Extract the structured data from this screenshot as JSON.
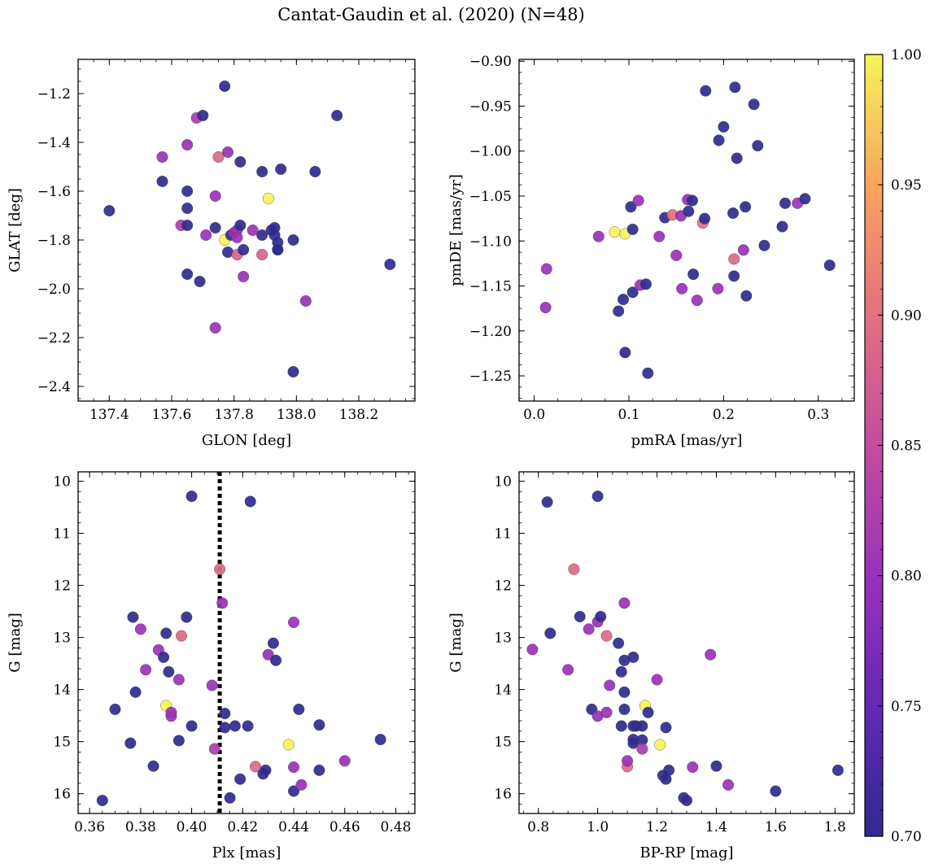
{
  "title": "Cantat-Gaudin et al. (2020) (N=48)",
  "colorbar": {
    "min": 0.7,
    "max": 1.0,
    "ticks": [
      "0.70",
      "0.75",
      "0.80",
      "0.85",
      "0.90",
      "0.95",
      "1.00"
    ],
    "colormap": "plasma",
    "colors": [
      "#3b2d93",
      "#7b2fbf",
      "#b03fb0",
      "#d0609a",
      "#ec8a72",
      "#f9c058",
      "#f7f559"
    ]
  },
  "chart_data": [
    {
      "type": "scatter",
      "name": "glon-glat",
      "xlabel": "GLON [deg]",
      "ylabel": "GLAT [deg]",
      "xlim": [
        137.3,
        138.38
      ],
      "ylim": [
        -2.46,
        -1.06
      ],
      "xticks": [
        "137.4",
        "137.6",
        "137.8",
        "138.0",
        "138.2"
      ],
      "xtick_values": [
        137.4,
        137.6,
        137.8,
        138.0,
        138.2
      ],
      "yticks": [
        "-1.2",
        "-1.4",
        "-1.6",
        "-1.8",
        "-2.0",
        "-2.2",
        "-2.4"
      ],
      "ytick_values": [
        -1.2,
        -1.4,
        -1.6,
        -1.8,
        -2.0,
        -2.2,
        -2.4
      ],
      "invert_y": false,
      "points": [
        [
          137.4,
          -1.68,
          0.7
        ],
        [
          137.57,
          -1.56,
          0.7
        ],
        [
          137.57,
          -1.46,
          0.8
        ],
        [
          137.63,
          -1.74,
          0.82
        ],
        [
          137.65,
          -1.6,
          0.7
        ],
        [
          137.65,
          -1.67,
          0.7
        ],
        [
          137.65,
          -1.74,
          0.7
        ],
        [
          137.65,
          -1.41,
          0.8
        ],
        [
          137.65,
          -1.94,
          0.7
        ],
        [
          137.68,
          -1.3,
          0.82
        ],
        [
          137.69,
          -1.97,
          0.7
        ],
        [
          137.7,
          -1.29,
          0.7
        ],
        [
          137.71,
          -1.78,
          0.8
        ],
        [
          137.74,
          -1.75,
          0.7
        ],
        [
          137.74,
          -1.62,
          0.8
        ],
        [
          137.74,
          -2.16,
          0.8
        ],
        [
          137.75,
          -1.46,
          0.89
        ],
        [
          137.77,
          -1.8,
          1.0
        ],
        [
          137.77,
          -1.17,
          0.7
        ],
        [
          137.78,
          -1.44,
          0.8
        ],
        [
          137.78,
          -1.85,
          0.7
        ],
        [
          137.79,
          -1.78,
          0.7
        ],
        [
          137.8,
          -1.77,
          0.8
        ],
        [
          137.81,
          -1.76,
          0.8
        ],
        [
          137.81,
          -1.79,
          0.8
        ],
        [
          137.81,
          -1.86,
          0.88
        ],
        [
          137.82,
          -1.48,
          0.7
        ],
        [
          137.82,
          -1.74,
          0.7
        ],
        [
          137.83,
          -1.84,
          0.7
        ],
        [
          137.83,
          -1.95,
          0.8
        ],
        [
          137.86,
          -1.76,
          0.8
        ],
        [
          137.89,
          -1.78,
          0.7
        ],
        [
          137.89,
          -1.52,
          0.7
        ],
        [
          137.89,
          -1.86,
          0.88
        ],
        [
          137.91,
          -1.63,
          1.0
        ],
        [
          137.93,
          -1.75,
          0.7
        ],
        [
          137.93,
          -1.78,
          0.7
        ],
        [
          137.94,
          -1.81,
          0.7
        ],
        [
          137.94,
          -1.84,
          0.7
        ],
        [
          137.94,
          -1.84,
          0.7
        ],
        [
          137.95,
          -1.51,
          0.7
        ],
        [
          137.99,
          -2.34,
          0.7
        ],
        [
          137.99,
          -1.8,
          0.7
        ],
        [
          138.03,
          -2.05,
          0.8
        ],
        [
          138.06,
          -1.52,
          0.7
        ],
        [
          138.13,
          -1.29,
          0.7
        ],
        [
          138.3,
          -1.9,
          0.7
        ],
        [
          137.92,
          -1.76,
          0.7
        ]
      ]
    },
    {
      "type": "scatter",
      "name": "pmra-pmde",
      "xlabel": "pmRA [mas/yr]",
      "ylabel": "pmDE [mas/yr]",
      "xlim": [
        -0.016,
        0.338
      ],
      "ylim": [
        -1.278,
        -0.898
      ],
      "xticks": [
        "0.0",
        "0.1",
        "0.2",
        "0.3"
      ],
      "xtick_values": [
        0.0,
        0.1,
        0.2,
        0.3
      ],
      "yticks": [
        "-0.90",
        "-0.95",
        "-1.00",
        "-1.05",
        "-1.10",
        "-1.15",
        "-1.20",
        "-1.25"
      ],
      "ytick_values": [
        -0.9,
        -0.95,
        -1.0,
        -1.05,
        -1.1,
        -1.15,
        -1.2,
        -1.25
      ],
      "invert_y": false,
      "points": [
        [
          0.013,
          -1.131,
          0.8
        ],
        [
          0.012,
          -1.174,
          0.8
        ],
        [
          0.068,
          -1.095,
          0.8
        ],
        [
          0.085,
          -1.09,
          1.0
        ],
        [
          0.089,
          -1.178,
          0.7
        ],
        [
          0.094,
          -1.165,
          0.7
        ],
        [
          0.096,
          -1.092,
          1.0
        ],
        [
          0.096,
          -1.224,
          0.7
        ],
        [
          0.102,
          -1.062,
          0.7
        ],
        [
          0.104,
          -1.087,
          0.7
        ],
        [
          0.104,
          -1.157,
          0.7
        ],
        [
          0.11,
          -1.055,
          0.8
        ],
        [
          0.112,
          -1.149,
          0.8
        ],
        [
          0.118,
          -1.148,
          0.7
        ],
        [
          0.12,
          -1.247,
          0.7
        ],
        [
          0.132,
          -1.095,
          0.8
        ],
        [
          0.138,
          -1.074,
          0.7
        ],
        [
          0.146,
          -1.071,
          0.9
        ],
        [
          0.15,
          -1.116,
          0.8
        ],
        [
          0.155,
          -1.072,
          0.8
        ],
        [
          0.156,
          -1.153,
          0.8
        ],
        [
          0.162,
          -1.054,
          0.8
        ],
        [
          0.163,
          -1.067,
          0.7
        ],
        [
          0.167,
          -1.055,
          0.7
        ],
        [
          0.168,
          -1.137,
          0.7
        ],
        [
          0.172,
          -1.166,
          0.8
        ],
        [
          0.178,
          -1.08,
          0.9
        ],
        [
          0.18,
          -1.075,
          0.7
        ],
        [
          0.181,
          -0.933,
          0.7
        ],
        [
          0.194,
          -1.153,
          0.8
        ],
        [
          0.195,
          -0.988,
          0.7
        ],
        [
          0.2,
          -0.973,
          0.7
        ],
        [
          0.21,
          -1.069,
          0.7
        ],
        [
          0.211,
          -1.139,
          0.7
        ],
        [
          0.211,
          -1.12,
          0.89
        ],
        [
          0.212,
          -0.929,
          0.7
        ],
        [
          0.214,
          -1.008,
          0.7
        ],
        [
          0.221,
          -1.11,
          0.8
        ],
        [
          0.223,
          -1.062,
          0.7
        ],
        [
          0.224,
          -1.161,
          0.7
        ],
        [
          0.232,
          -0.948,
          0.7
        ],
        [
          0.236,
          -0.994,
          0.7
        ],
        [
          0.243,
          -1.105,
          0.7
        ],
        [
          0.262,
          -1.084,
          0.7
        ],
        [
          0.265,
          -1.058,
          0.7
        ],
        [
          0.278,
          -1.058,
          0.8
        ],
        [
          0.286,
          -1.053,
          0.7
        ],
        [
          0.312,
          -1.127,
          0.7
        ]
      ]
    },
    {
      "type": "scatter",
      "name": "plx-g",
      "xlabel": "Plx [mas]",
      "ylabel": "G [mag]",
      "xlim": [
        0.3555,
        0.4875
      ],
      "ylim": [
        9.82,
        16.38
      ],
      "xticks": [
        "0.36",
        "0.38",
        "0.40",
        "0.42",
        "0.44",
        "0.46",
        "0.48"
      ],
      "xtick_values": [
        0.36,
        0.38,
        0.4,
        0.42,
        0.44,
        0.46,
        0.48
      ],
      "yticks": [
        "10",
        "11",
        "12",
        "13",
        "14",
        "15",
        "16"
      ],
      "ytick_values": [
        10,
        11,
        12,
        13,
        14,
        15,
        16
      ],
      "invert_y": true,
      "vline": {
        "x": 0.411,
        "style": "dotted"
      },
      "points": [
        [
          0.365,
          16.13,
          0.7
        ],
        [
          0.37,
          14.38,
          0.7
        ],
        [
          0.376,
          15.03,
          0.7
        ],
        [
          0.377,
          12.61,
          0.7
        ],
        [
          0.378,
          14.05,
          0.7
        ],
        [
          0.38,
          12.84,
          0.8
        ],
        [
          0.382,
          13.62,
          0.8
        ],
        [
          0.385,
          15.47,
          0.7
        ],
        [
          0.387,
          13.24,
          0.8
        ],
        [
          0.389,
          13.38,
          0.7
        ],
        [
          0.39,
          12.92,
          0.7
        ],
        [
          0.39,
          14.31,
          1.0
        ],
        [
          0.391,
          13.66,
          0.7
        ],
        [
          0.392,
          14.51,
          0.8
        ],
        [
          0.392,
          14.44,
          0.8
        ],
        [
          0.395,
          13.81,
          0.8
        ],
        [
          0.395,
          14.98,
          0.7
        ],
        [
          0.396,
          12.97,
          0.89
        ],
        [
          0.398,
          12.61,
          0.7
        ],
        [
          0.4,
          14.7,
          0.7
        ],
        [
          0.4,
          10.29,
          0.7
        ],
        [
          0.408,
          13.92,
          0.8
        ],
        [
          0.409,
          15.14,
          0.82
        ],
        [
          0.411,
          11.69,
          0.89
        ],
        [
          0.412,
          12.34,
          0.8
        ],
        [
          0.413,
          14.73,
          0.7
        ],
        [
          0.413,
          14.46,
          0.7
        ],
        [
          0.415,
          16.08,
          0.7
        ],
        [
          0.417,
          14.7,
          0.7
        ],
        [
          0.419,
          15.72,
          0.7
        ],
        [
          0.422,
          14.7,
          0.7
        ],
        [
          0.423,
          10.39,
          0.7
        ],
        [
          0.425,
          15.48,
          0.89
        ],
        [
          0.428,
          15.62,
          0.7
        ],
        [
          0.429,
          15.55,
          0.7
        ],
        [
          0.43,
          13.33,
          0.8
        ],
        [
          0.432,
          13.11,
          0.7
        ],
        [
          0.433,
          13.44,
          0.7
        ],
        [
          0.438,
          15.06,
          1.0
        ],
        [
          0.44,
          15.49,
          0.8
        ],
        [
          0.44,
          12.71,
          0.8
        ],
        [
          0.44,
          15.95,
          0.7
        ],
        [
          0.442,
          14.38,
          0.7
        ],
        [
          0.443,
          15.83,
          0.8
        ],
        [
          0.45,
          14.68,
          0.7
        ],
        [
          0.45,
          15.55,
          0.7
        ],
        [
          0.46,
          15.37,
          0.8
        ],
        [
          0.474,
          14.96,
          0.7
        ]
      ]
    },
    {
      "type": "scatter",
      "name": "bprp-g",
      "xlabel": "BP-RP [mag]",
      "ylabel": "G [mag]",
      "xlim": [
        0.735,
        1.865
      ],
      "ylim": [
        9.82,
        16.38
      ],
      "xticks": [
        "0.8",
        "1.0",
        "1.2",
        "1.4",
        "1.6",
        "1.8"
      ],
      "xtick_values": [
        0.8,
        1.0,
        1.2,
        1.4,
        1.6,
        1.8
      ],
      "yticks": [
        "10",
        "11",
        "12",
        "13",
        "14",
        "15",
        "16"
      ],
      "ytick_values": [
        10,
        11,
        12,
        13,
        14,
        15,
        16
      ],
      "invert_y": true,
      "points": [
        [
          0.78,
          13.23,
          0.8
        ],
        [
          0.83,
          10.4,
          0.7
        ],
        [
          0.84,
          12.92,
          0.7
        ],
        [
          0.9,
          13.62,
          0.8
        ],
        [
          0.92,
          11.69,
          0.89
        ],
        [
          0.94,
          12.6,
          0.7
        ],
        [
          0.97,
          12.84,
          0.8
        ],
        [
          0.98,
          14.38,
          0.7
        ],
        [
          1.0,
          14.51,
          0.8
        ],
        [
          1.0,
          10.29,
          0.7
        ],
        [
          1.0,
          12.7,
          0.8
        ],
        [
          1.01,
          12.6,
          0.7
        ],
        [
          1.03,
          12.97,
          0.89
        ],
        [
          1.03,
          14.44,
          0.8
        ],
        [
          1.04,
          13.92,
          0.8
        ],
        [
          1.07,
          13.11,
          0.7
        ],
        [
          1.08,
          13.66,
          0.7
        ],
        [
          1.08,
          14.7,
          0.7
        ],
        [
          1.09,
          14.38,
          0.7
        ],
        [
          1.09,
          13.44,
          0.7
        ],
        [
          1.09,
          12.34,
          0.8
        ],
        [
          1.09,
          14.05,
          0.7
        ],
        [
          1.1,
          15.48,
          0.89
        ],
        [
          1.1,
          15.37,
          0.8
        ],
        [
          1.12,
          14.7,
          0.7
        ],
        [
          1.12,
          15.03,
          0.7
        ],
        [
          1.12,
          14.96,
          0.7
        ],
        [
          1.12,
          13.38,
          0.7
        ],
        [
          1.13,
          14.7,
          0.7
        ],
        [
          1.15,
          14.97,
          0.7
        ],
        [
          1.15,
          15.14,
          0.82
        ],
        [
          1.15,
          14.7,
          0.7
        ],
        [
          1.16,
          14.31,
          1.0
        ],
        [
          1.17,
          14.44,
          0.7
        ],
        [
          1.2,
          13.81,
          0.8
        ],
        [
          1.21,
          15.06,
          1.0
        ],
        [
          1.22,
          15.65,
          0.7
        ],
        [
          1.23,
          14.73,
          0.7
        ],
        [
          1.23,
          15.72,
          0.7
        ],
        [
          1.24,
          15.55,
          0.7
        ],
        [
          1.29,
          16.08,
          0.7
        ],
        [
          1.3,
          16.13,
          0.7
        ],
        [
          1.32,
          15.49,
          0.8
        ],
        [
          1.38,
          13.33,
          0.8
        ],
        [
          1.4,
          15.47,
          0.7
        ],
        [
          1.44,
          15.83,
          0.8
        ],
        [
          1.6,
          15.95,
          0.7
        ],
        [
          1.81,
          15.55,
          0.7
        ]
      ]
    }
  ]
}
